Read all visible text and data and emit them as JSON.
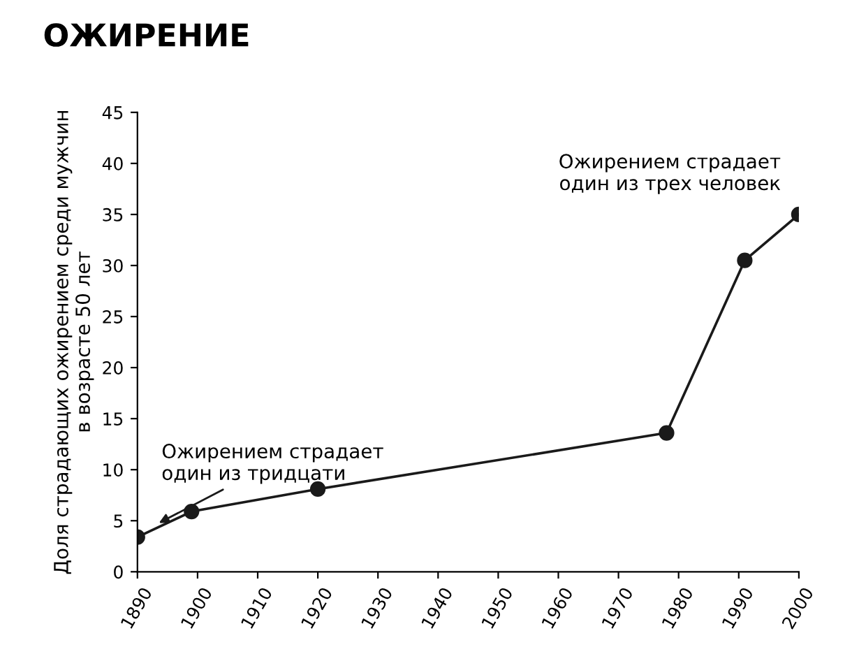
{
  "chart_data": {
    "type": "line",
    "title": "ОЖИРЕНИЕ",
    "ylabel": "Доля страдающих ожирением среди мужчин\nв возрасте 50 лет",
    "series": [
      {
        "color": "#1a1a1a",
        "x": [
          1890,
          1899,
          1920,
          1978,
          1991,
          2000
        ],
        "values": [
          3.4,
          5.9,
          8.1,
          13.6,
          30.5,
          35
        ]
      }
    ],
    "marker": "circle",
    "line_style": "solid",
    "grid": false,
    "legend": false,
    "xlim": [
      1890,
      2000
    ],
    "xticks": [
      1890,
      1900,
      1910,
      1920,
      1930,
      1940,
      1950,
      1960,
      1970,
      1980,
      1990,
      2000
    ],
    "ylim": [
      0,
      45
    ],
    "yticks": [
      0,
      5,
      10,
      15,
      20,
      25,
      30,
      35,
      40,
      45
    ],
    "annotations": [
      {
        "text": "Ожирением страдает\nодин из тридцати",
        "x": 1893,
        "y": 4.6
      },
      "Ожирением страдает\nодин из трех человек"
    ]
  }
}
